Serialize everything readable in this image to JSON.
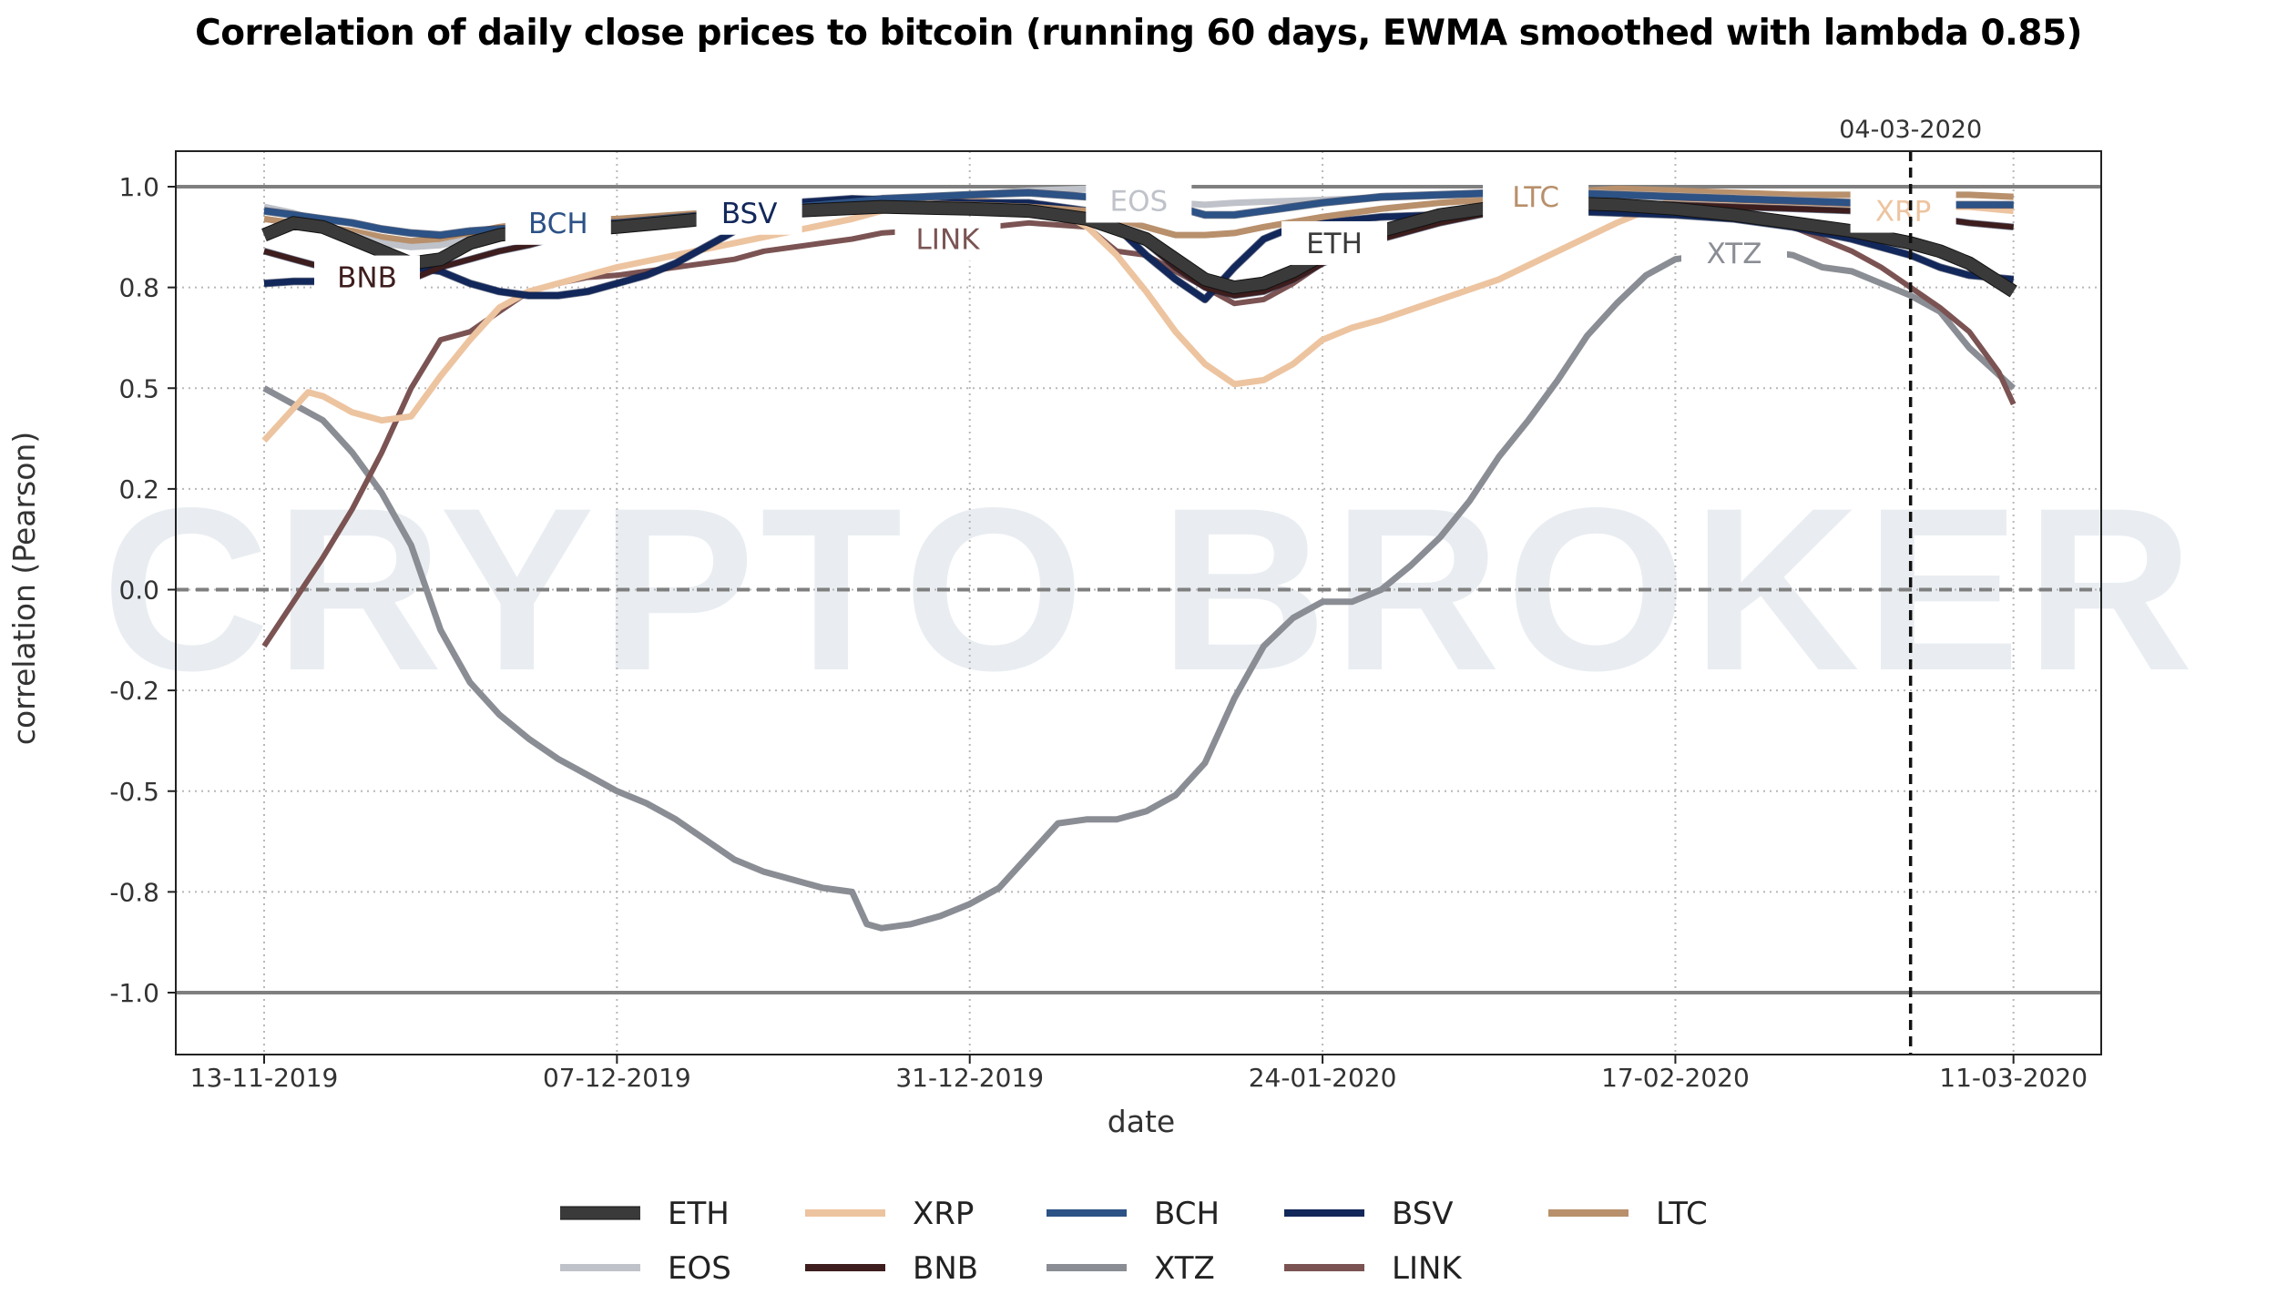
{
  "chart_data": {
    "type": "line",
    "title": "Correlation of daily close prices to bitcoin (running 60 days, EWMA smoothed with lambda 0.85)",
    "xlabel": "date",
    "ylabel": "correlation (Pearson)",
    "watermark": "CRYPTO BROKER",
    "x_start_date": "13-11-2019",
    "x_unit": "days since 13-11-2019",
    "xlim": [
      -3.8,
      125.5
    ],
    "ylim": [
      -1.08,
      1.07
    ],
    "x_ticks": [
      {
        "day": 0,
        "label": "13-11-2019"
      },
      {
        "day": 24,
        "label": "07-12-2019"
      },
      {
        "day": 48,
        "label": "31-12-2019"
      },
      {
        "day": 72,
        "label": "24-01-2020"
      },
      {
        "day": 96,
        "label": "17-02-2020"
      },
      {
        "day": 119,
        "label": "11-03-2020"
      }
    ],
    "y_ticks": [
      {
        "value": 1.0,
        "label": "1.0"
      },
      {
        "value": 0.75,
        "label": "0.8"
      },
      {
        "value": 0.5,
        "label": "0.5"
      },
      {
        "value": 0.25,
        "label": "0.2"
      },
      {
        "value": 0.0,
        "label": "0.0"
      },
      {
        "value": -0.25,
        "label": "-0.2"
      },
      {
        "value": -0.5,
        "label": "-0.5"
      },
      {
        "value": -0.75,
        "label": "-0.8"
      },
      {
        "value": -1.0,
        "label": "-1.0"
      }
    ],
    "grid": true,
    "reference_lines": [
      {
        "value": 1.0,
        "style": "solid"
      },
      {
        "value": 0.0,
        "style": "dashed"
      },
      {
        "value": -1.0,
        "style": "solid"
      }
    ],
    "vertical_marker": {
      "day": 112,
      "label": "04-03-2020"
    },
    "legend_position": "bottom-center",
    "series": [
      {
        "name": "ETH",
        "color": "#3a3a3a",
        "x": [
          0,
          2,
          4,
          6,
          8,
          10,
          12,
          14,
          16,
          18,
          20,
          24,
          30,
          36,
          42,
          48,
          52,
          56,
          60,
          62,
          64,
          66,
          68,
          70,
          72,
          76,
          80,
          84,
          88,
          92,
          96,
          100,
          104,
          108,
          110,
          112,
          114,
          116,
          119
        ],
        "y": [
          0.88,
          0.91,
          0.9,
          0.87,
          0.84,
          0.81,
          0.82,
          0.86,
          0.88,
          0.89,
          0.89,
          0.9,
          0.92,
          0.94,
          0.95,
          0.945,
          0.94,
          0.92,
          0.87,
          0.82,
          0.77,
          0.75,
          0.76,
          0.79,
          0.83,
          0.89,
          0.93,
          0.95,
          0.96,
          0.955,
          0.945,
          0.93,
          0.91,
          0.89,
          0.875,
          0.86,
          0.84,
          0.81,
          0.74
        ]
      },
      {
        "name": "XRP",
        "color": "#edc4a0",
        "x": [
          0,
          2,
          3,
          4,
          6,
          8,
          10,
          12,
          14,
          16,
          18,
          20,
          24,
          28,
          32,
          36,
          40,
          44,
          48,
          52,
          54,
          56,
          58,
          60,
          62,
          64,
          66,
          68,
          70,
          72,
          74,
          76,
          80,
          84,
          88,
          92,
          96,
          100,
          104,
          108,
          112,
          116,
          119
        ],
        "y": [
          0.37,
          0.45,
          0.49,
          0.48,
          0.44,
          0.42,
          0.43,
          0.53,
          0.62,
          0.7,
          0.74,
          0.76,
          0.8,
          0.83,
          0.86,
          0.89,
          0.92,
          0.96,
          0.97,
          0.95,
          0.94,
          0.9,
          0.83,
          0.74,
          0.64,
          0.56,
          0.51,
          0.52,
          0.56,
          0.62,
          0.65,
          0.67,
          0.72,
          0.77,
          0.84,
          0.91,
          0.97,
          0.965,
          0.96,
          0.955,
          0.95,
          0.95,
          0.94
        ]
      },
      {
        "name": "BCH",
        "color": "#2c5286",
        "x": [
          0,
          2,
          4,
          6,
          8,
          10,
          12,
          14,
          16,
          18,
          20,
          24,
          30,
          36,
          42,
          48,
          52,
          56,
          60,
          62,
          64,
          66,
          68,
          72,
          76,
          80,
          84,
          88,
          92,
          96,
          100,
          104,
          108,
          112,
          116,
          119
        ],
        "y": [
          0.94,
          0.93,
          0.92,
          0.91,
          0.895,
          0.885,
          0.88,
          0.89,
          0.895,
          0.9,
          0.905,
          0.91,
          0.93,
          0.95,
          0.97,
          0.98,
          0.985,
          0.975,
          0.96,
          0.95,
          0.93,
          0.93,
          0.94,
          0.96,
          0.975,
          0.98,
          0.985,
          0.985,
          0.98,
          0.975,
          0.97,
          0.965,
          0.96,
          0.955,
          0.955,
          0.955
        ]
      },
      {
        "name": "BSV",
        "color": "#12275a",
        "x": [
          0,
          2,
          4,
          6,
          8,
          10,
          12,
          14,
          16,
          18,
          20,
          22,
          24,
          26,
          28,
          30,
          32,
          34,
          36,
          40,
          44,
          48,
          52,
          56,
          58,
          60,
          62,
          64,
          66,
          68,
          70,
          72,
          76,
          80,
          84,
          88,
          92,
          96,
          100,
          104,
          108,
          112,
          114,
          116,
          119
        ],
        "y": [
          0.76,
          0.765,
          0.765,
          0.765,
          0.78,
          0.8,
          0.79,
          0.76,
          0.74,
          0.73,
          0.73,
          0.74,
          0.76,
          0.78,
          0.81,
          0.85,
          0.89,
          0.93,
          0.96,
          0.97,
          0.965,
          0.96,
          0.96,
          0.94,
          0.9,
          0.83,
          0.77,
          0.72,
          0.8,
          0.87,
          0.9,
          0.91,
          0.925,
          0.93,
          0.935,
          0.94,
          0.935,
          0.93,
          0.92,
          0.9,
          0.87,
          0.83,
          0.8,
          0.78,
          0.77
        ]
      },
      {
        "name": "LTC",
        "color": "#b8906c",
        "x": [
          0,
          2,
          4,
          6,
          8,
          10,
          12,
          14,
          16,
          18,
          20,
          24,
          30,
          36,
          42,
          48,
          52,
          56,
          58,
          60,
          62,
          64,
          66,
          68,
          72,
          76,
          80,
          84,
          88,
          92,
          96,
          100,
          104,
          108,
          112,
          116,
          119
        ],
        "y": [
          0.92,
          0.91,
          0.9,
          0.89,
          0.875,
          0.865,
          0.87,
          0.885,
          0.9,
          0.91,
          0.915,
          0.92,
          0.935,
          0.95,
          0.96,
          0.955,
          0.95,
          0.94,
          0.92,
          0.9,
          0.88,
          0.88,
          0.885,
          0.9,
          0.925,
          0.945,
          0.96,
          0.97,
          0.985,
          0.995,
          0.99,
          0.985,
          0.98,
          0.98,
          0.98,
          0.98,
          0.975
        ]
      },
      {
        "name": "EOS",
        "color": "#bfc2c9",
        "x": [
          0,
          2,
          4,
          6,
          8,
          10,
          12,
          14,
          16,
          18,
          20,
          24,
          30,
          36,
          42,
          48,
          52,
          56,
          58,
          60,
          62,
          64,
          66,
          70,
          74,
          78,
          82,
          86,
          90,
          94,
          98,
          102,
          106,
          110,
          114,
          119
        ],
        "y": [
          0.95,
          0.935,
          0.91,
          0.88,
          0.86,
          0.85,
          0.855,
          0.87,
          0.885,
          0.895,
          0.9,
          0.91,
          0.93,
          0.95,
          0.965,
          0.98,
          0.99,
          0.995,
          0.985,
          0.97,
          0.96,
          0.955,
          0.96,
          0.965,
          0.97,
          0.975,
          0.98,
          0.985,
          0.985,
          0.98,
          0.975,
          0.97,
          0.965,
          0.96,
          0.955,
          0.955
        ]
      },
      {
        "name": "BNB",
        "color": "#3d1d1d",
        "x": [
          0,
          2,
          4,
          6,
          8,
          10,
          12,
          14,
          16,
          18,
          20,
          22,
          24,
          30,
          36,
          42,
          48,
          52,
          56,
          58,
          60,
          62,
          64,
          66,
          68,
          70,
          72,
          76,
          80,
          84,
          88,
          92,
          96,
          100,
          104,
          108,
          112,
          116,
          119
        ],
        "y": [
          0.84,
          0.82,
          0.8,
          0.78,
          0.76,
          0.77,
          0.8,
          0.82,
          0.84,
          0.855,
          0.875,
          0.89,
          0.9,
          0.925,
          0.945,
          0.955,
          0.95,
          0.94,
          0.92,
          0.89,
          0.86,
          0.8,
          0.75,
          0.73,
          0.74,
          0.77,
          0.81,
          0.87,
          0.91,
          0.94,
          0.955,
          0.96,
          0.955,
          0.95,
          0.945,
          0.94,
          0.93,
          0.91,
          0.9
        ]
      },
      {
        "name": "XTZ",
        "color": "#8a8d94",
        "x": [
          0,
          2,
          4,
          6,
          8,
          10,
          12,
          14,
          16,
          18,
          20,
          22,
          24,
          26,
          28,
          30,
          32,
          34,
          36,
          38,
          40,
          41,
          42,
          44,
          46,
          48,
          50,
          52,
          54,
          56,
          58,
          60,
          62,
          64,
          66,
          68,
          70,
          72,
          74,
          76,
          78,
          80,
          82,
          84,
          86,
          88,
          90,
          92,
          94,
          96,
          98,
          100,
          102,
          104,
          106,
          108,
          110,
          112,
          114,
          116,
          119
        ],
        "y": [
          0.5,
          0.46,
          0.42,
          0.34,
          0.24,
          0.11,
          -0.1,
          -0.23,
          -0.31,
          -0.37,
          -0.42,
          -0.46,
          -0.5,
          -0.53,
          -0.57,
          -0.62,
          -0.67,
          -0.7,
          -0.72,
          -0.74,
          -0.75,
          -0.83,
          -0.84,
          -0.83,
          -0.81,
          -0.78,
          -0.74,
          -0.66,
          -0.58,
          -0.57,
          -0.57,
          -0.55,
          -0.51,
          -0.43,
          -0.27,
          -0.14,
          -0.07,
          -0.03,
          -0.03,
          0.0,
          0.06,
          0.13,
          0.22,
          0.33,
          0.42,
          0.52,
          0.63,
          0.71,
          0.78,
          0.82,
          0.83,
          0.835,
          0.84,
          0.83,
          0.8,
          0.79,
          0.76,
          0.73,
          0.69,
          0.6,
          0.5
        ]
      },
      {
        "name": "LINK",
        "color": "#7b5353",
        "x": [
          0,
          2,
          4,
          6,
          8,
          10,
          12,
          14,
          16,
          18,
          20,
          22,
          24,
          26,
          28,
          30,
          32,
          34,
          36,
          38,
          40,
          42,
          44,
          46,
          48,
          52,
          56,
          58,
          60,
          62,
          64,
          66,
          68,
          70,
          72,
          76,
          80,
          84,
          88,
          92,
          96,
          100,
          104,
          106,
          108,
          110,
          112,
          114,
          116,
          118,
          119
        ],
        "y": [
          -0.14,
          -0.03,
          0.08,
          0.2,
          0.34,
          0.5,
          0.62,
          0.64,
          0.69,
          0.74,
          0.76,
          0.775,
          0.78,
          0.79,
          0.8,
          0.81,
          0.82,
          0.84,
          0.85,
          0.86,
          0.87,
          0.885,
          0.89,
          0.89,
          0.895,
          0.91,
          0.9,
          0.84,
          0.83,
          0.79,
          0.75,
          0.71,
          0.72,
          0.76,
          0.81,
          0.88,
          0.92,
          0.945,
          0.95,
          0.94,
          0.935,
          0.92,
          0.9,
          0.87,
          0.84,
          0.8,
          0.75,
          0.7,
          0.64,
          0.54,
          0.46
        ]
      }
    ],
    "inline_labels": [
      {
        "series": "BNB",
        "day": 7,
        "value": 0.775
      },
      {
        "series": "BCH",
        "day": 20,
        "value": 0.91
      },
      {
        "series": "BSV",
        "day": 33,
        "value": 0.935
      },
      {
        "series": "LINK",
        "day": 46.5,
        "value": 0.87
      },
      {
        "series": "EOS",
        "day": 59.5,
        "value": 0.965
      },
      {
        "series": "ETH",
        "day": 72.8,
        "value": 0.86
      },
      {
        "series": "LTC",
        "day": 86.5,
        "value": 0.975
      },
      {
        "series": "XTZ",
        "day": 100,
        "value": 0.835
      },
      {
        "series": "XRP",
        "day": 111.5,
        "value": 0.94
      }
    ]
  },
  "legend": {
    "rows": [
      [
        "ETH",
        "XRP",
        "BCH",
        "BSV",
        "LTC"
      ],
      [
        "EOS",
        "BNB",
        "XTZ",
        "LINK"
      ]
    ]
  }
}
